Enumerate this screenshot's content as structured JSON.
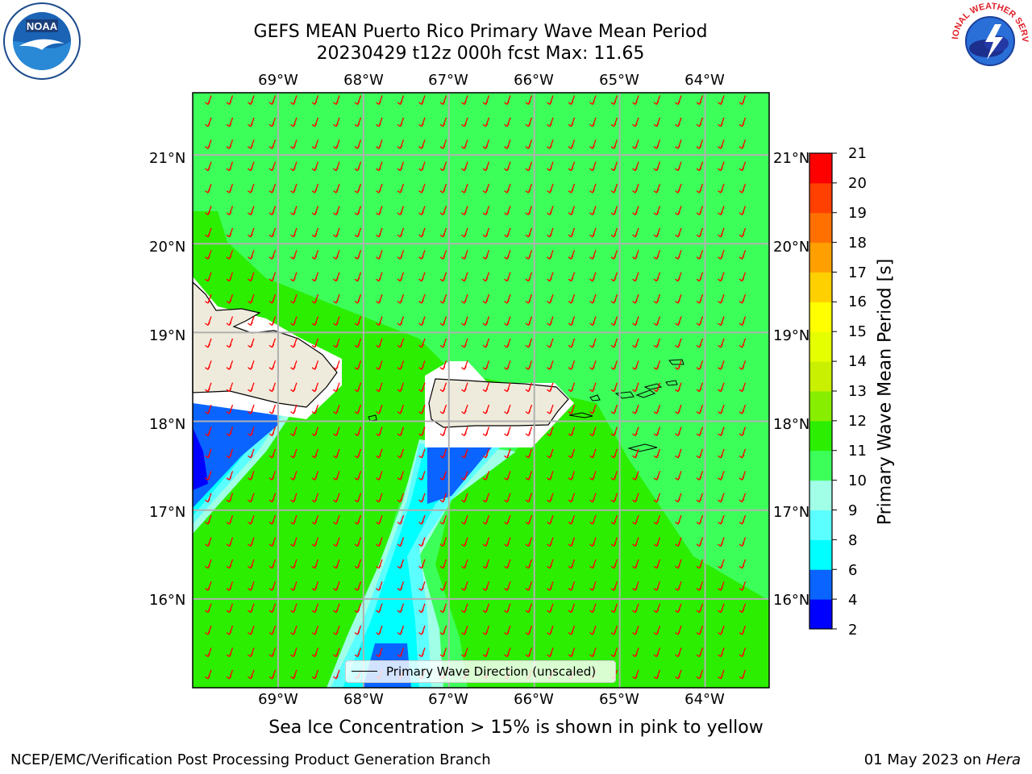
{
  "title": {
    "line1": "GEFS MEAN Puerto Rico Primary Wave Mean Period",
    "line2": "20230429 t12z 000h fcst   Max: 11.65"
  },
  "logos": {
    "left": "NOAA",
    "right": "NATIONAL WEATHER SERVICE"
  },
  "map": {
    "lon_labels": [
      "69°W",
      "68°W",
      "67°W",
      "66°W",
      "65°W",
      "64°W"
    ],
    "lat_labels": [
      "21°N",
      "20°N",
      "19°N",
      "18°N",
      "17°N",
      "16°N"
    ],
    "lon_range": [
      -70.0,
      -63.25
    ],
    "lat_range": [
      15.0,
      21.7
    ],
    "field_variable": "Primary Wave Mean Period",
    "arrow_color": "#ff0000",
    "arrow_direction": "toward south-southwest",
    "land_color": "#efebdc",
    "grid": true
  },
  "colorbar": {
    "title": "Primary Wave Mean Period [s]",
    "ticks": [
      "21",
      "20",
      "19",
      "18",
      "17",
      "16",
      "15",
      "14",
      "13",
      "12",
      "11",
      "10",
      "9",
      "8",
      "6",
      "4",
      "2"
    ],
    "levels": [
      2,
      4,
      6,
      8,
      9,
      10,
      11,
      12,
      13,
      14,
      15,
      16,
      17,
      18,
      19,
      20,
      21
    ],
    "colors": [
      "#0000ff",
      "#0a64ff",
      "#00ffff",
      "#5cffff",
      "#a0ffe6",
      "#3cff5a",
      "#2cee00",
      "#88ee00",
      "#c8f000",
      "#e6ff00",
      "#ffff00",
      "#ffd000",
      "#ffa000",
      "#ff7000",
      "#ff4000",
      "#ff0000"
    ]
  },
  "legend": {
    "label": "Primary Wave Direction (unscaled)"
  },
  "subtitle": "Sea Ice Concentration > 15% is shown in pink to yellow",
  "footer": {
    "left": "NCEP/EMC/Verification Post Processing Product Generation Branch",
    "date": "01 May 2023 on",
    "machine": "Hera"
  }
}
